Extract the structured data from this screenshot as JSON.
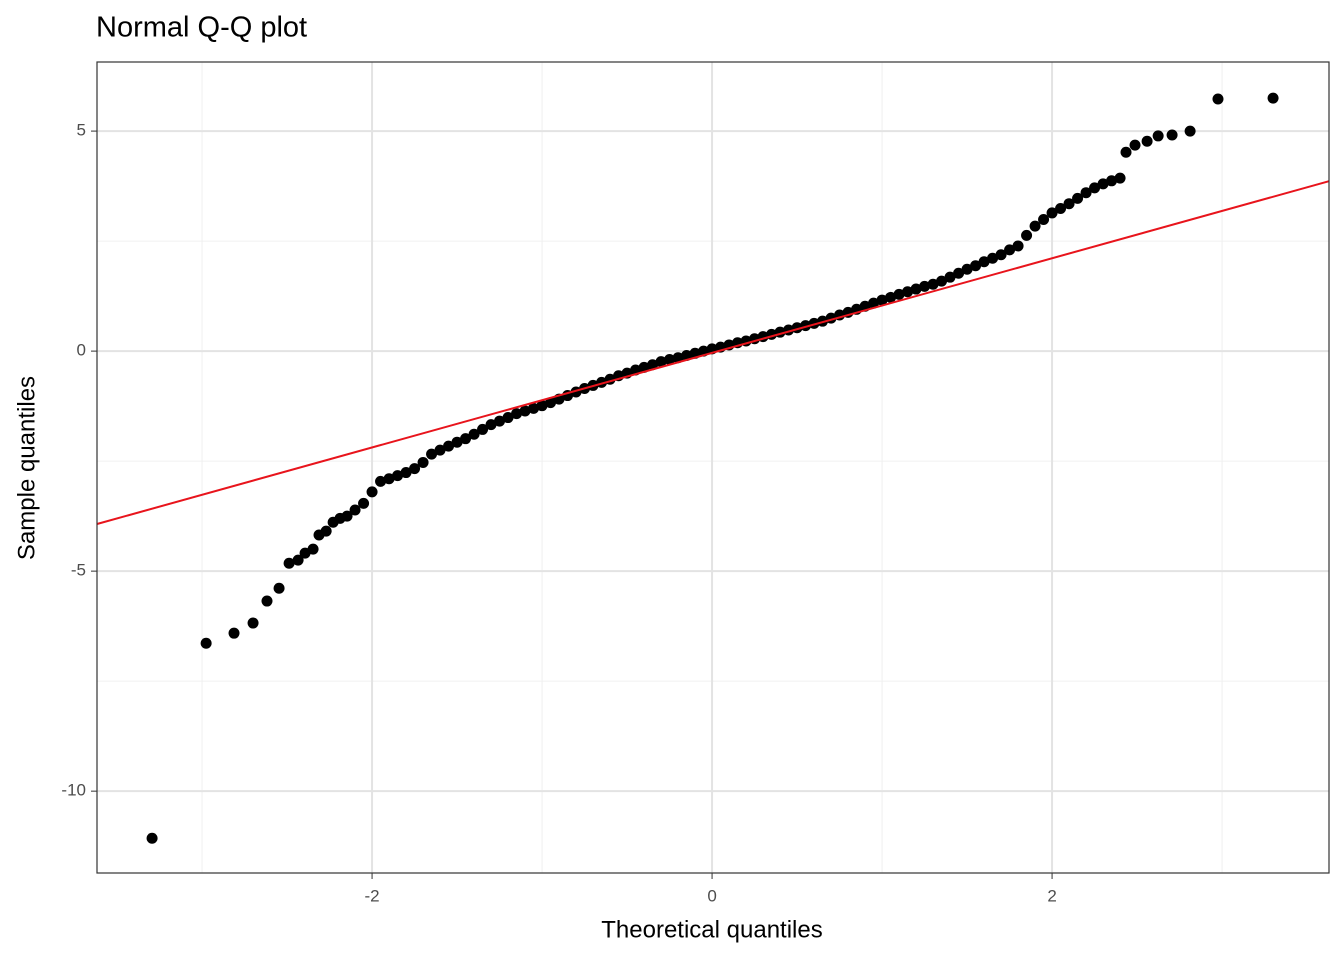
{
  "chart_data": {
    "type": "scatter",
    "title": "Normal Q-Q plot",
    "xlabel": "Theoretical quantiles",
    "ylabel": "Sample quantiles",
    "xlim": [
      -3.618,
      3.629
    ],
    "ylim": [
      -11.86,
      6.57
    ],
    "xticks": [
      -2,
      0,
      2
    ],
    "yticks": [
      -10,
      -5,
      0,
      5
    ],
    "xminor": [
      -3,
      -1,
      1,
      3
    ],
    "yminor": [
      -7.5,
      -2.5,
      2.5
    ],
    "grid": true,
    "series": [
      {
        "color": "#000000",
        "x": [
          -3.294,
          -2.976,
          -2.812,
          -2.7,
          -2.618,
          -2.547,
          -2.488,
          -2.435,
          -2.394,
          -2.347,
          -2.312,
          -2.27,
          -2.229,
          -2.188,
          -2.147,
          -2.1,
          -2.05,
          -2.0,
          -1.95,
          -1.9,
          -1.85,
          -1.8,
          -1.75,
          -1.7,
          -1.65,
          -1.6,
          -1.55,
          -1.5,
          -1.45,
          -1.4,
          -1.35,
          -1.3,
          -1.25,
          -1.2,
          -1.15,
          -1.1,
          -1.05,
          -1.0,
          -0.95,
          -0.9,
          -0.85,
          -0.8,
          -0.75,
          -0.7,
          -0.65,
          -0.6,
          -0.55,
          -0.5,
          -0.45,
          -0.4,
          -0.35,
          -0.3,
          -0.25,
          -0.2,
          -0.15,
          -0.1,
          -0.05,
          0.0,
          0.05,
          0.1,
          0.15,
          0.2,
          0.25,
          0.3,
          0.35,
          0.4,
          0.45,
          0.5,
          0.55,
          0.6,
          0.65,
          0.7,
          0.75,
          0.8,
          0.85,
          0.9,
          0.95,
          1.0,
          1.05,
          1.1,
          1.15,
          1.2,
          1.25,
          1.3,
          1.35,
          1.4,
          1.45,
          1.5,
          1.55,
          1.6,
          1.65,
          1.7,
          1.75,
          1.8,
          1.85,
          1.9,
          1.95,
          2.0,
          2.05,
          2.1,
          2.15,
          2.2,
          2.25,
          2.3,
          2.35,
          2.4,
          2.435,
          2.488,
          2.559,
          2.624,
          2.706,
          2.812,
          2.976,
          3.3
        ],
        "y": [
          -11.07,
          -6.64,
          -6.41,
          -6.18,
          -5.68,
          -5.39,
          -4.82,
          -4.75,
          -4.59,
          -4.5,
          -4.18,
          -4.09,
          -3.89,
          -3.8,
          -3.75,
          -3.61,
          -3.46,
          -3.2,
          -2.96,
          -2.9,
          -2.83,
          -2.76,
          -2.67,
          -2.53,
          -2.34,
          -2.25,
          -2.16,
          -2.07,
          -1.99,
          -1.89,
          -1.78,
          -1.67,
          -1.59,
          -1.51,
          -1.42,
          -1.36,
          -1.3,
          -1.24,
          -1.17,
          -1.09,
          -1.01,
          -0.93,
          -0.85,
          -0.78,
          -0.71,
          -0.64,
          -0.56,
          -0.5,
          -0.43,
          -0.37,
          -0.31,
          -0.24,
          -0.19,
          -0.15,
          -0.1,
          -0.05,
          0.0,
          0.05,
          0.09,
          0.14,
          0.19,
          0.23,
          0.28,
          0.33,
          0.38,
          0.43,
          0.48,
          0.53,
          0.58,
          0.63,
          0.68,
          0.75,
          0.82,
          0.88,
          0.95,
          1.02,
          1.09,
          1.16,
          1.22,
          1.29,
          1.35,
          1.41,
          1.47,
          1.52,
          1.59,
          1.68,
          1.77,
          1.86,
          1.94,
          2.03,
          2.11,
          2.19,
          2.3,
          2.39,
          2.63,
          2.84,
          2.99,
          3.14,
          3.24,
          3.35,
          3.47,
          3.6,
          3.71,
          3.8,
          3.87,
          3.93,
          4.52,
          4.68,
          4.77,
          4.89,
          4.91,
          5.0,
          5.73,
          5.75
        ]
      }
    ],
    "reference_line": {
      "intercept": -0.04,
      "slope": 1.075,
      "color": "#e8141c"
    }
  }
}
